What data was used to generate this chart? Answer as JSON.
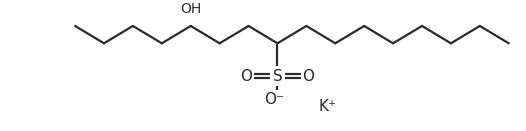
{
  "bg_color": "#ffffff",
  "line_color": "#2a2a2a",
  "line_width": 1.6,
  "text_color": "#2a2a2a",
  "fig_width": 5.26,
  "fig_height": 1.31,
  "dpi": 100,
  "K_label": "K⁺",
  "OH_label": "OH",
  "S_label": "S",
  "O_minus_label": "O⁻",
  "O_eq_left": "O",
  "O_eq_right": "O",
  "sx": 30,
  "sy": 18
}
